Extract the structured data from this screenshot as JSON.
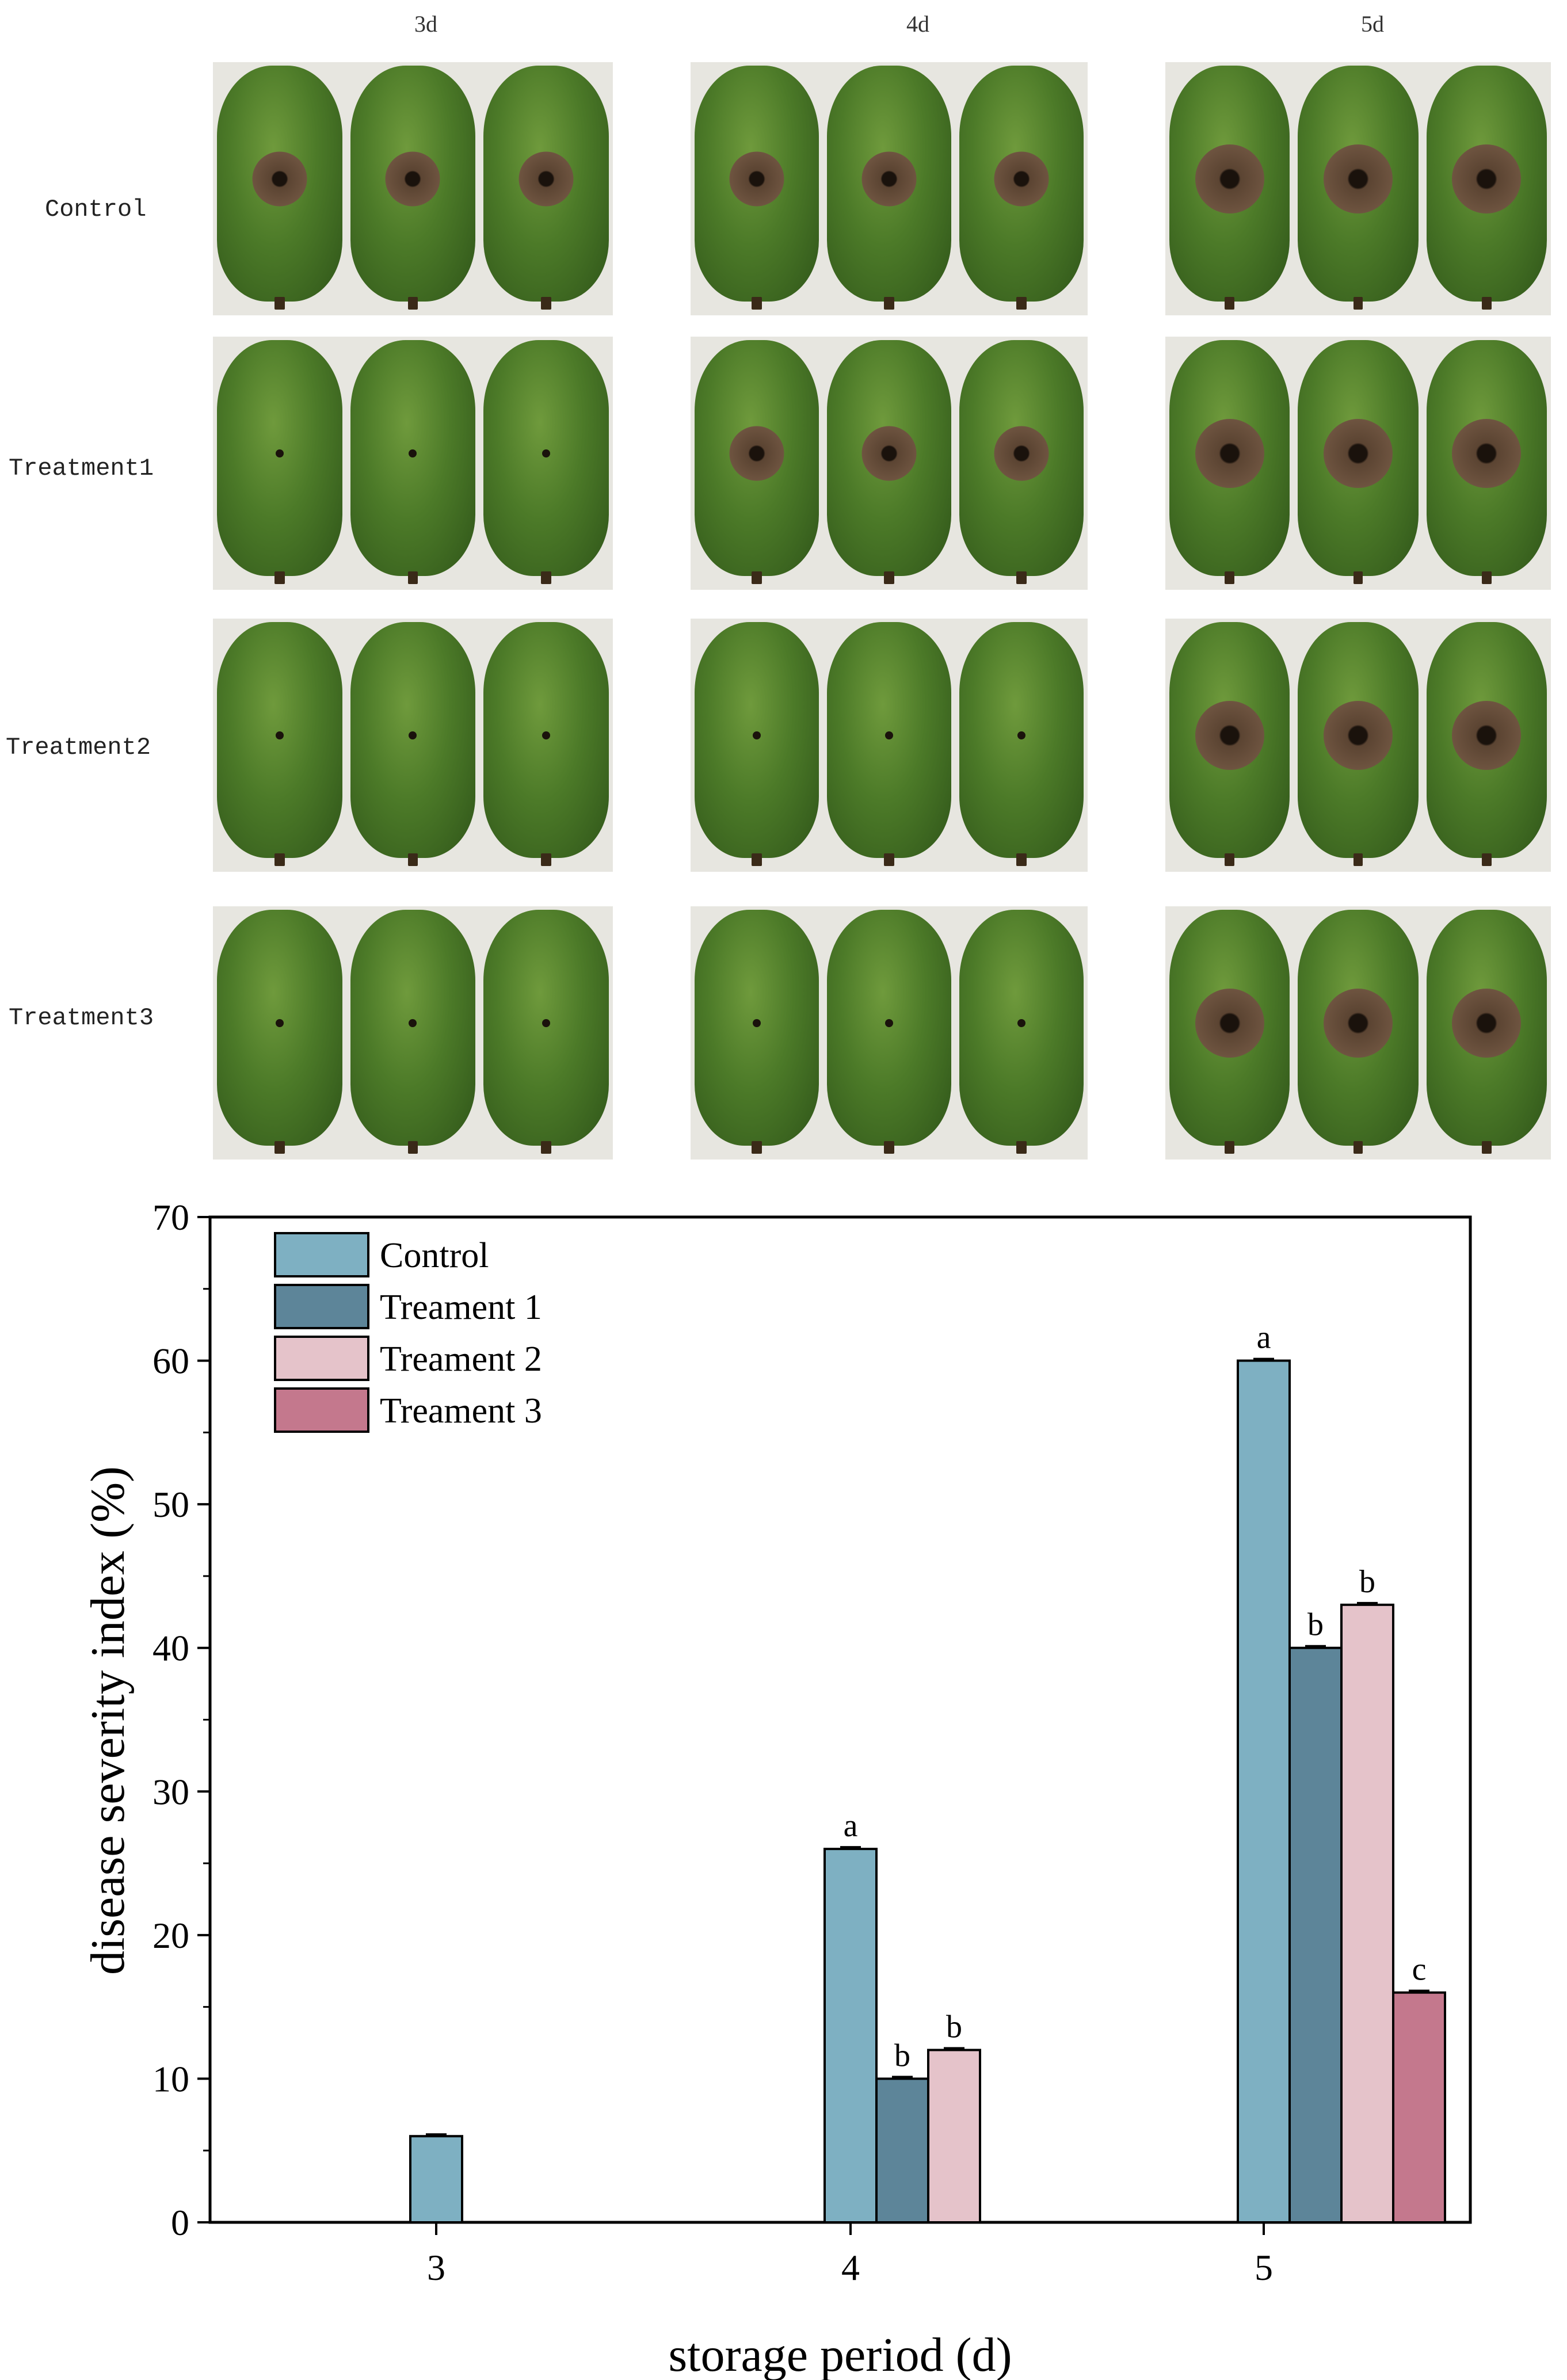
{
  "photo_panel": {
    "columns": [
      "3d",
      "4d",
      "5d"
    ],
    "rows": [
      "Control",
      "Treatment1",
      "Treatment2",
      "Treatment3"
    ],
    "lesion_visible": [
      [
        true,
        true,
        true
      ],
      [
        false,
        true,
        true
      ],
      [
        false,
        false,
        true
      ],
      [
        false,
        false,
        true
      ]
    ]
  },
  "chart_data": {
    "type": "bar",
    "categories": [
      "3",
      "4",
      "5"
    ],
    "series": [
      {
        "name": "Control",
        "values": [
          6,
          26,
          60
        ],
        "letters": [
          "",
          "a",
          "a"
        ],
        "color": "#7eb0c2"
      },
      {
        "name": "Treament 1",
        "values": [
          null,
          10,
          40
        ],
        "letters": [
          "",
          "b",
          "b"
        ],
        "color": "#5d8599"
      },
      {
        "name": "Treament 2",
        "values": [
          null,
          12,
          43
        ],
        "letters": [
          "",
          "b",
          "b"
        ],
        "color": "#e5c3ca"
      },
      {
        "name": "Treament 3",
        "values": [
          null,
          null,
          16
        ],
        "letters": [
          "",
          "",
          "c"
        ],
        "color": "#c4788d"
      }
    ],
    "xlabel": "storage period (d)",
    "ylabel": "disease severity index (%)",
    "ylim": [
      0,
      70
    ],
    "yticks": [
      0,
      10,
      20,
      30,
      40,
      50,
      60,
      70
    ],
    "legend_position": "top-left"
  }
}
